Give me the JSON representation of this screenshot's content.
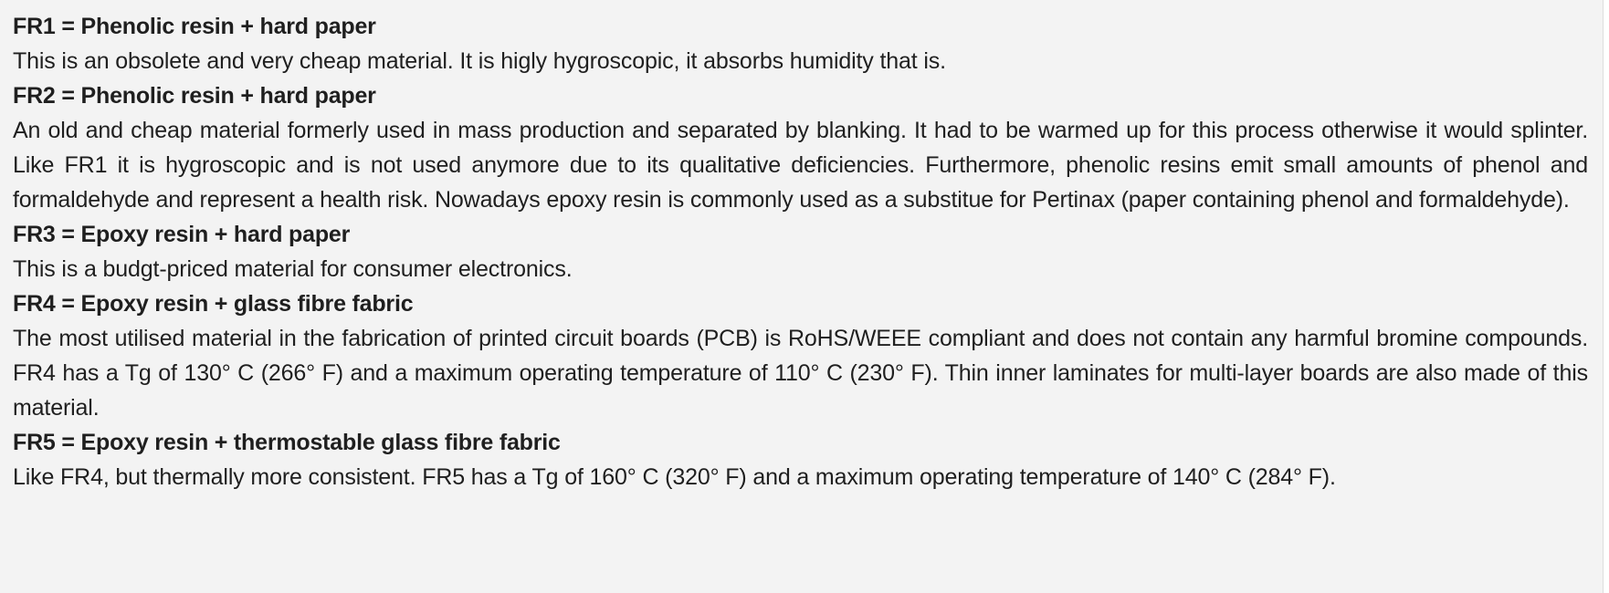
{
  "entries": [
    {
      "title": "FR1 = Phenolic resin + hard paper",
      "text": "This is an obsolete and very cheap material. It is higly hygroscopic, it absorbs humidity that is."
    },
    {
      "title": "FR2 = Phenolic resin + hard paper",
      "text": "An old and cheap material formerly used in mass production and separated by blanking. It had to be warmed up for this process otherwise it would splinter. Like FR1 it is hygroscopic and is not used anymore due to its qualitative deficiencies. Furthermore, phenolic resins emit small amounts of phenol and formaldehyde and represent a health risk. Nowadays epoxy resin is commonly used as a substitue for Pertinax (paper containing phenol and formaldehyde)."
    },
    {
      "title": "FR3 = Epoxy resin + hard paper",
      "text": "This is a budgt-priced material for consumer electronics."
    },
    {
      "title": "FR4 = Epoxy resin + glass fibre fabric",
      "text": "The most utilised material in the fabrication of printed circuit boards (PCB) is RoHS/WEEE compliant and does not contain any harmful bromine compounds. FR4 has a Tg of 130° C (266° F) and a maximum operating temperature of 110° C (230° F). Thin inner laminates for multi-layer boards are also made of this material."
    },
    {
      "title": "FR5 = Epoxy resin + thermostable glass fibre fabric",
      "text": "Like FR4, but thermally more consistent. FR5 has a Tg of 160° C (320° F) and a maximum operating temperature of 140° C (284° F)."
    }
  ]
}
